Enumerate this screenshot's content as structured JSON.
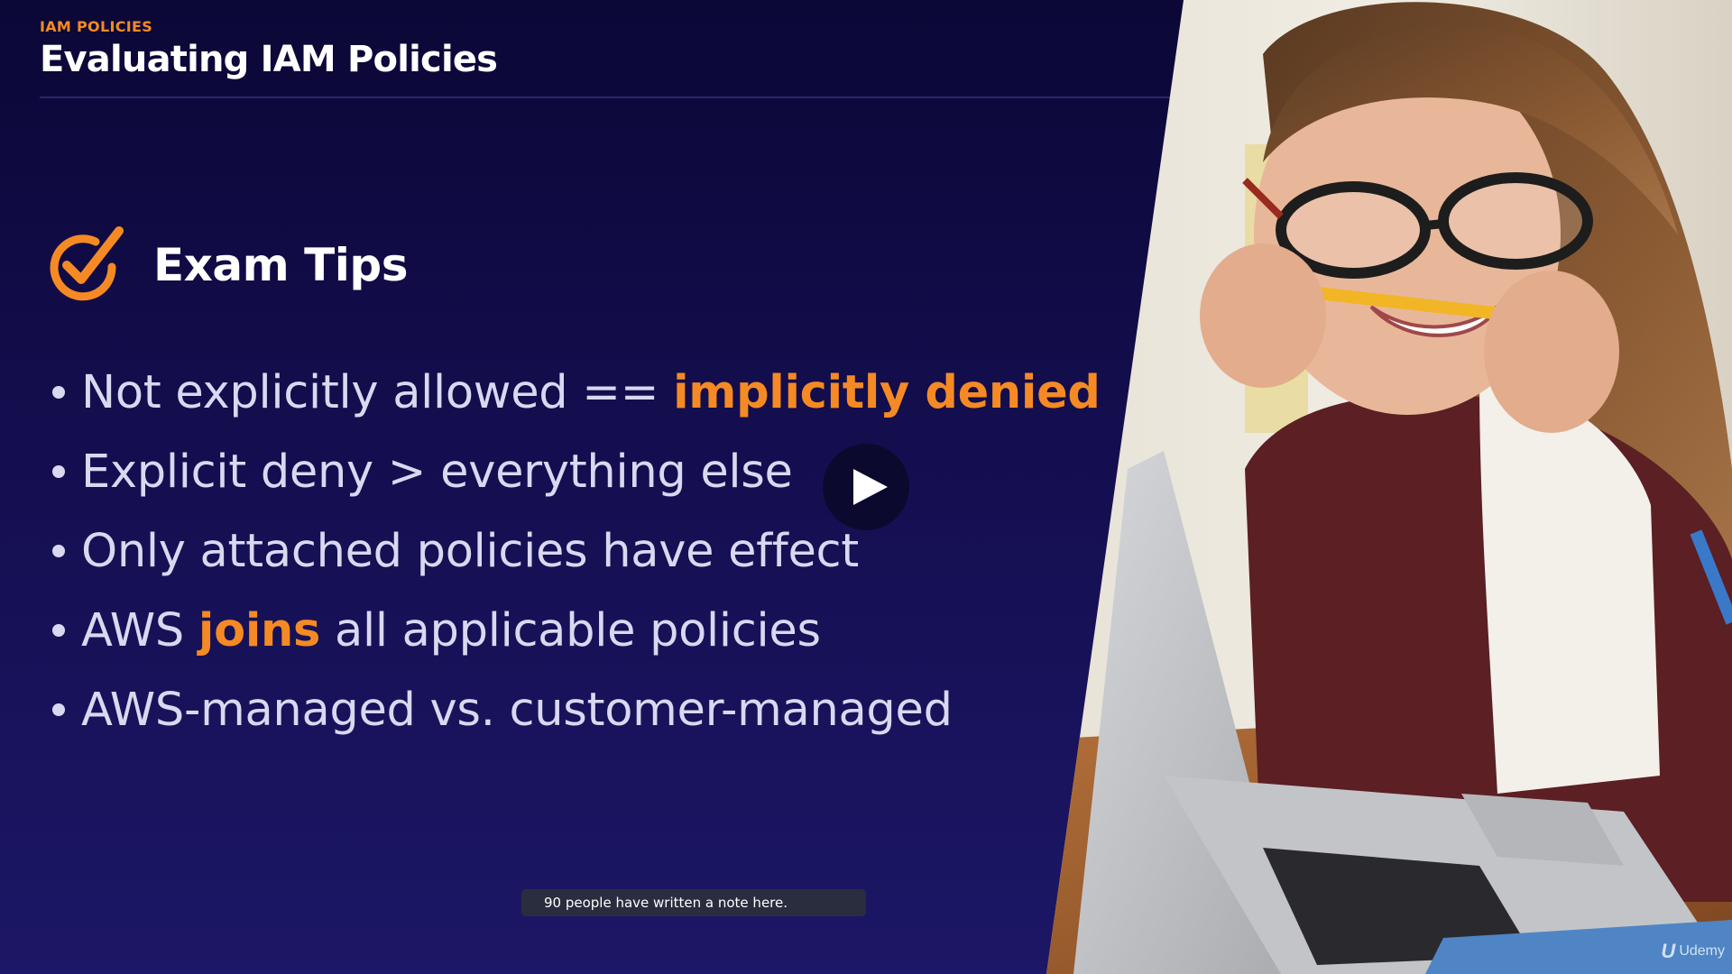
{
  "header": {
    "kicker": "IAM POLICIES",
    "title": "Evaluating IAM Policies"
  },
  "section": {
    "title": "Exam Tips",
    "icon": "checkmark-circle-icon",
    "accent_color": "#f58a24"
  },
  "bullets": [
    {
      "before": "Not explicitly allowed == ",
      "highlight": "implicitly denied",
      "after": ""
    },
    {
      "before": "Explicit deny > everything else",
      "highlight": "",
      "after": ""
    },
    {
      "before": "Only attached policies have effect",
      "highlight": "",
      "after": ""
    },
    {
      "before": "AWS ",
      "highlight": "joins",
      "after": " all applicable policies"
    },
    {
      "before": "AWS-managed vs. customer-managed",
      "highlight": "",
      "after": ""
    }
  ],
  "player": {
    "play_icon": "play-icon",
    "note_tooltip": "90 people have written a note here."
  },
  "watermark": {
    "brand": "Udemy",
    "logo_glyph": "U"
  },
  "colors": {
    "background_top": "#0b0736",
    "background_bottom": "#1c1766",
    "accent": "#f58a24",
    "tooltip_bg": "#2a2d3e"
  }
}
